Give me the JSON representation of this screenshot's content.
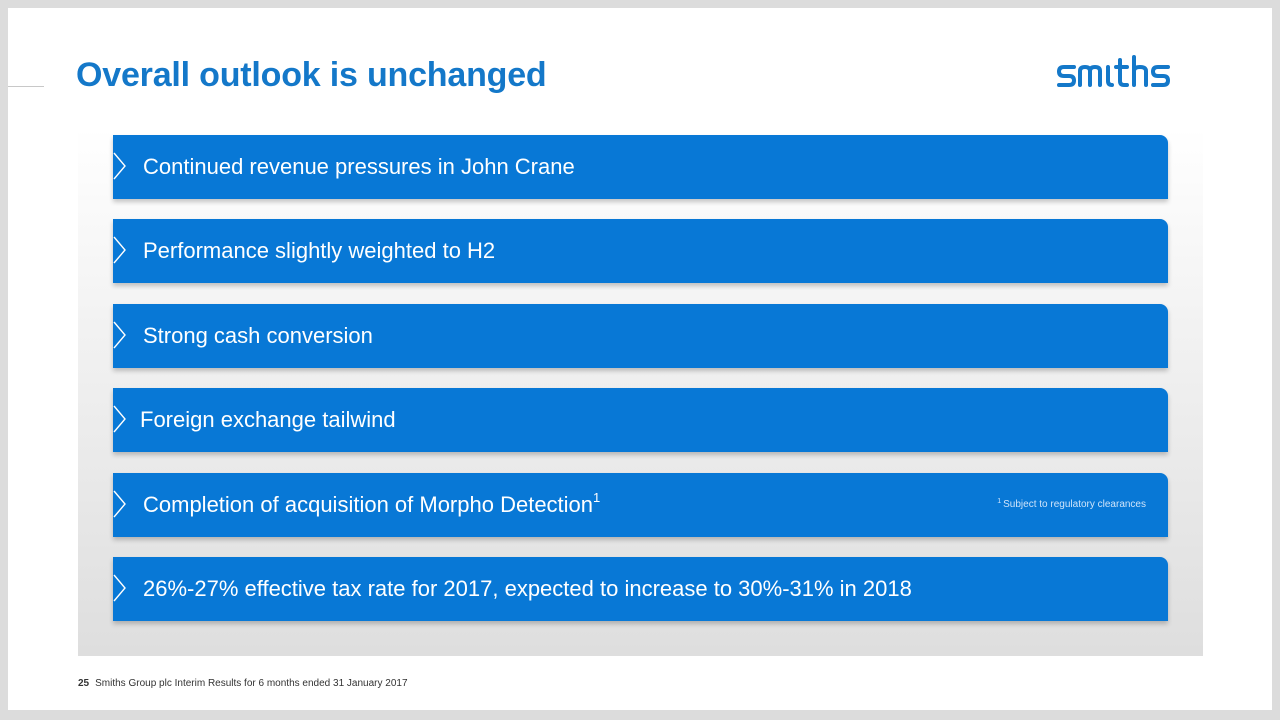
{
  "slide": {
    "title": "Overall outlook is unchanged",
    "logo_text": "smiths",
    "brand_color": "#1478c9",
    "bullet_color": "#0878d6"
  },
  "bullets": [
    {
      "text": "Continued revenue pressures in John Crane",
      "icon": "chevron-right-icon"
    },
    {
      "text": "Performance slightly weighted to H2",
      "icon": "chevron-right-icon"
    },
    {
      "text": "Strong cash conversion",
      "icon": "chevron-right-icon"
    },
    {
      "text": "Foreign exchange tailwind",
      "icon": "chevron-right-icon"
    },
    {
      "text": "Completion of acquisition of Morpho Detection",
      "superscript": "1",
      "icon": "chevron-right-icon",
      "footnote": {
        "marker": "1",
        "text": "Subject to regulatory clearances"
      }
    },
    {
      "text": "26%-27% effective tax rate for 2017, expected to increase to 30%-31% in 2018",
      "icon": "chevron-right-icon"
    }
  ],
  "footer": {
    "page_number": "25",
    "text": "Smiths Group plc Interim Results for 6 months ended 31 January 2017"
  }
}
